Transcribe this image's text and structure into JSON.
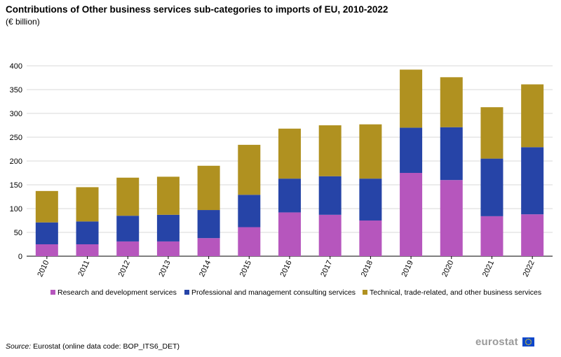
{
  "header": {
    "title": "Contributions of Other business services sub-categories to imports of EU, 2010-2022",
    "subtitle": "(€ billion)"
  },
  "footer": {
    "source_label": "Source:",
    "source_text": " Eurostat (online data code: BOP_ITS6_DET)",
    "logo_text": "eurostat"
  },
  "chart_data": {
    "type": "bar",
    "stacked": true,
    "title": "Contributions of Other business services sub-categories to imports of EU, 2010-2022",
    "ylabel": "(€ billion)",
    "xlabel": "",
    "ylim": [
      0,
      400
    ],
    "yticks": [
      0,
      50,
      100,
      150,
      200,
      250,
      300,
      350,
      400
    ],
    "grid": true,
    "legend_position": "bottom",
    "categories": [
      "2010",
      "2011",
      "2012",
      "2013",
      "2014",
      "2015",
      "2016",
      "2017",
      "2018",
      "2019",
      "2020",
      "2021",
      "2022"
    ],
    "series": [
      {
        "name": "Research and development services",
        "color": "#b656bd",
        "values": [
          25,
          25,
          31,
          31,
          38,
          61,
          92,
          87,
          75,
          175,
          160,
          84,
          88
        ]
      },
      {
        "name": "Professional and management consulting services",
        "color": "#2644a7",
        "values": [
          46,
          48,
          54,
          56,
          59,
          68,
          71,
          81,
          88,
          95,
          111,
          121,
          141
        ]
      },
      {
        "name": "Technical, trade-related, and other business services",
        "color": "#b09120",
        "values": [
          66,
          72,
          80,
          80,
          93,
          105,
          105,
          107,
          114,
          122,
          105,
          108,
          132
        ]
      }
    ]
  }
}
